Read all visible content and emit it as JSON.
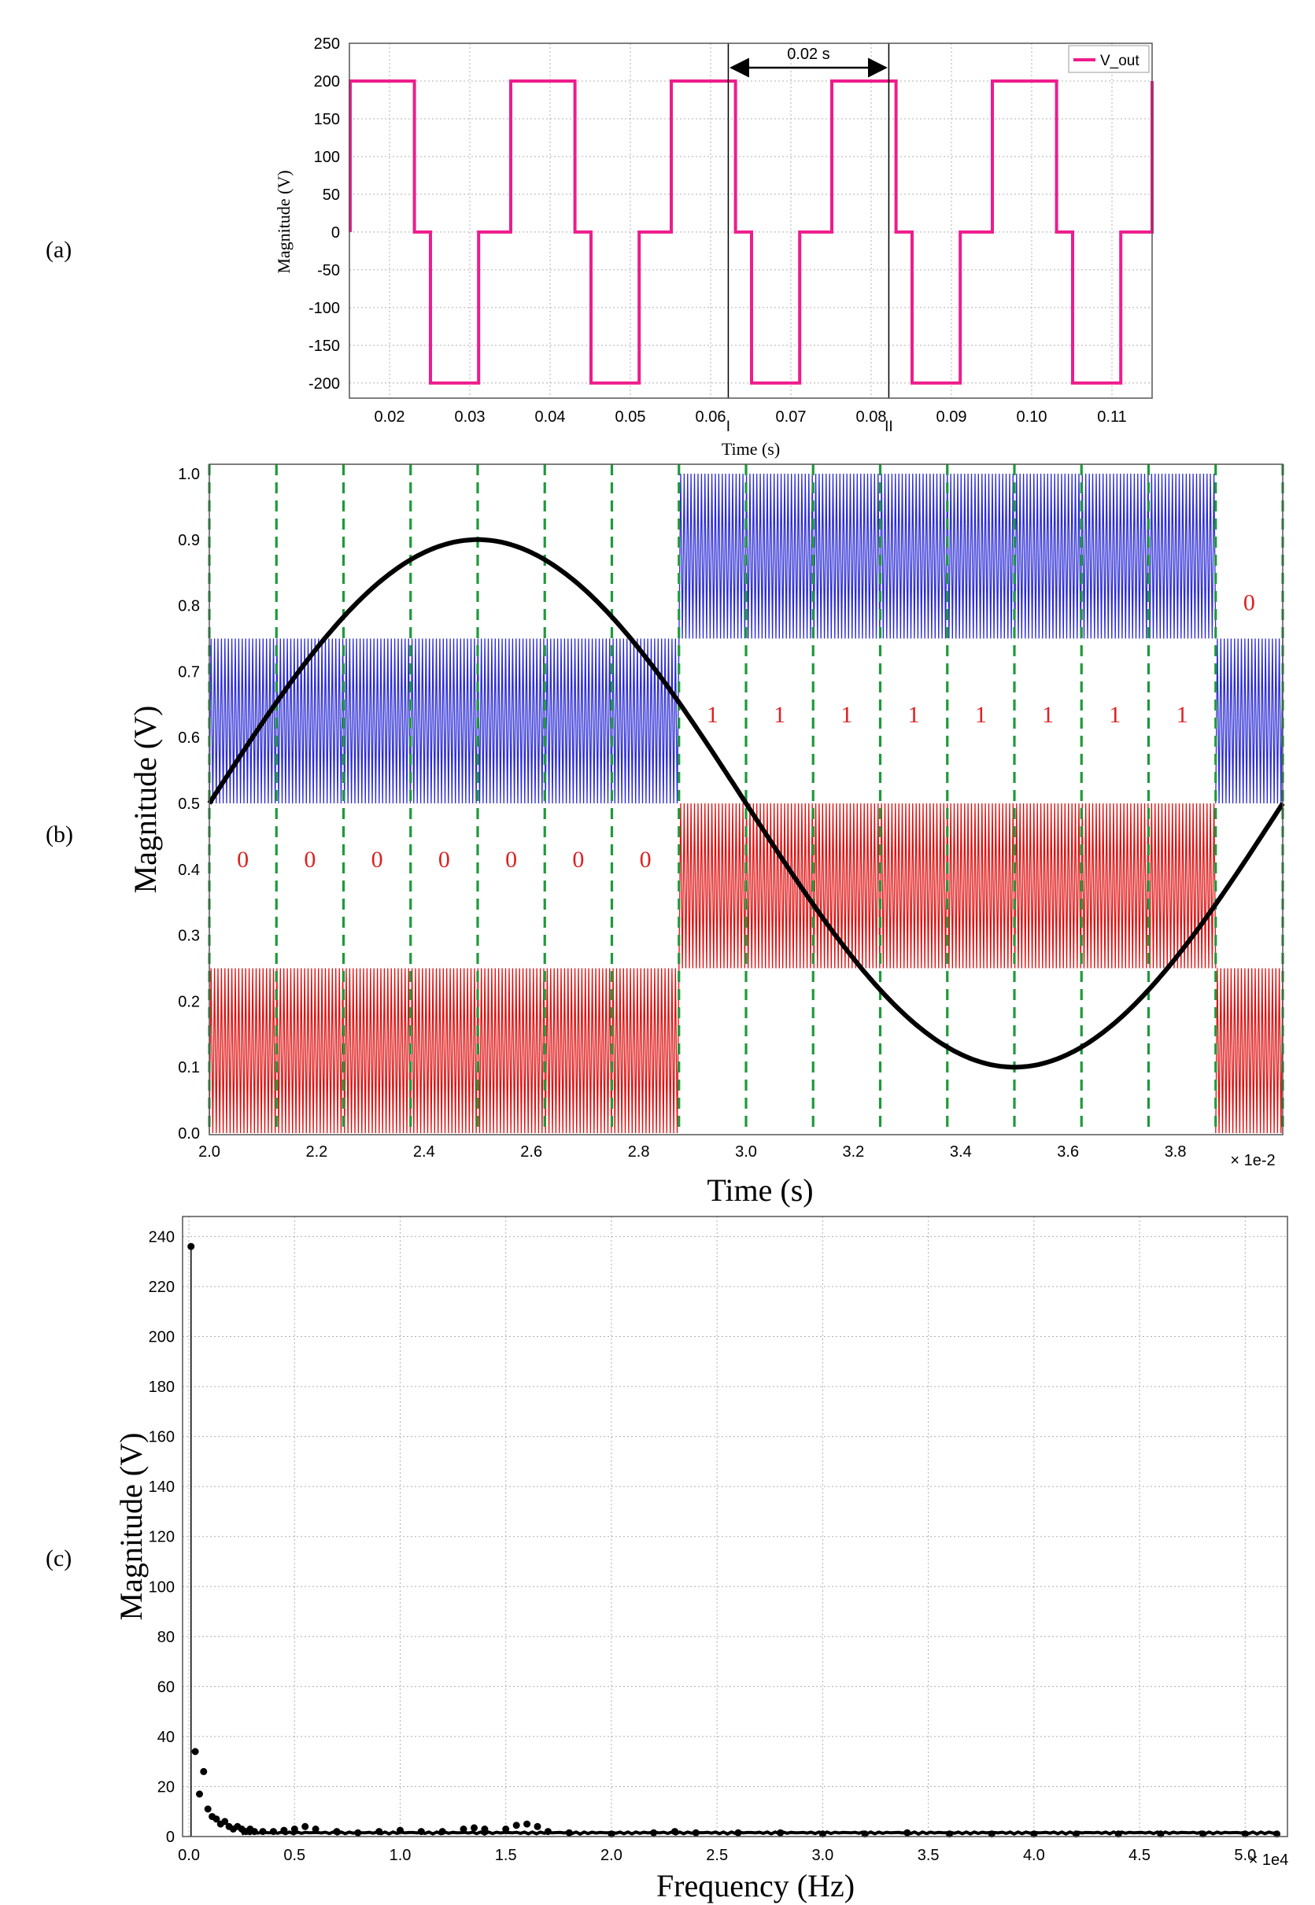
{
  "panel_labels": [
    "(a)",
    "(b)",
    "(c)"
  ],
  "colors": {
    "v_out": "#ee1c8c",
    "carrier_upper": "#2b2bd6",
    "carrier_lower": "#e01010",
    "reference": "#000000",
    "sector_lines": "#1e9a3a",
    "bit_label": "#d22222",
    "spectrum": "#000000",
    "grid": "#b0b0b0"
  },
  "chart_data": [
    {
      "id": "a",
      "type": "line",
      "xlabel": "Time (s)",
      "ylabel": "Magnitude (V)",
      "xlim": [
        0.015,
        0.115
      ],
      "ylim": [
        -220,
        250
      ],
      "xticks": [
        "0.02",
        "0.03",
        "0.04",
        "0.05",
        "0.06",
        "0.07",
        "0.08",
        "0.09",
        "0.10",
        "0.11"
      ],
      "yticks": [
        "250",
        "200",
        "150",
        "100",
        "50",
        "0",
        "-50",
        "-100",
        "-150",
        "-200"
      ],
      "grid": true,
      "legend": {
        "placement": "top-right",
        "entries": [
          "V_out"
        ]
      },
      "series": [
        {
          "name": "V_out",
          "period": 0.02,
          "levels": [
            200,
            0,
            -200,
            0
          ],
          "description": "three-level quasi-square wave"
        }
      ],
      "annotations": [
        {
          "text": "0.02 s",
          "from": 0.0622,
          "to": 0.0822
        },
        {
          "text": "I",
          "x": 0.0622
        },
        {
          "text": "II",
          "x": 0.0822
        }
      ]
    },
    {
      "id": "b",
      "type": "line",
      "xlabel": "Time (s)",
      "ylabel": "Magnitude (V)",
      "xlim": [
        2.0,
        3.93
      ],
      "ylim": [
        0.0,
        1.0
      ],
      "xunit": "× 1e-2",
      "xticks": [
        "2.0",
        "2.2",
        "2.4",
        "2.6",
        "2.8",
        "3.0",
        "3.2",
        "3.4",
        "3.6",
        "3.8"
      ],
      "yticks": [
        "1.0",
        "0.9",
        "0.8",
        "0.7",
        "0.6",
        "0.5",
        "0.4",
        "0.3",
        "0.2",
        "0.1",
        "0.0"
      ],
      "reference": {
        "offset": 0.5,
        "amplitude": 0.4,
        "period": 2.0,
        "start": 2.0
      },
      "carriers": [
        {
          "name": "upper",
          "bands": [
            {
              "x": [
                2.0,
                2.875
              ],
              "y": [
                0.5,
                0.75
              ]
            },
            {
              "x": [
                2.875,
                3.875
              ],
              "y": [
                0.75,
                1.0
              ]
            },
            {
              "x": [
                3.875,
                4.0
              ],
              "y": [
                0.5,
                0.75
              ]
            }
          ]
        },
        {
          "name": "lower",
          "bands": [
            {
              "x": [
                2.0,
                2.875
              ],
              "y": [
                0.0,
                0.25
              ]
            },
            {
              "x": [
                2.875,
                3.875
              ],
              "y": [
                0.25,
                0.5
              ]
            },
            {
              "x": [
                3.875,
                4.0
              ],
              "y": [
                0.0,
                0.25
              ]
            }
          ]
        }
      ],
      "sector_lines": [
        2.0,
        2.125,
        2.25,
        2.375,
        2.5,
        2.625,
        2.75,
        2.875,
        3.0,
        3.125,
        3.25,
        3.375,
        3.5,
        3.625,
        3.75,
        3.875,
        4.0
      ],
      "bit_labels": [
        {
          "text": "0",
          "x": 2.0625,
          "y": 0.415
        },
        {
          "text": "0",
          "x": 2.1875,
          "y": 0.415
        },
        {
          "text": "0",
          "x": 2.3125,
          "y": 0.415
        },
        {
          "text": "0",
          "x": 2.4375,
          "y": 0.415
        },
        {
          "text": "0",
          "x": 2.5625,
          "y": 0.415
        },
        {
          "text": "0",
          "x": 2.6875,
          "y": 0.415
        },
        {
          "text": "0",
          "x": 2.8125,
          "y": 0.415
        },
        {
          "text": "1",
          "x": 2.9375,
          "y": 0.635
        },
        {
          "text": "1",
          "x": 3.0625,
          "y": 0.635
        },
        {
          "text": "1",
          "x": 3.1875,
          "y": 0.635
        },
        {
          "text": "1",
          "x": 3.3125,
          "y": 0.635
        },
        {
          "text": "1",
          "x": 3.4375,
          "y": 0.635
        },
        {
          "text": "1",
          "x": 3.5625,
          "y": 0.635
        },
        {
          "text": "1",
          "x": 3.6875,
          "y": 0.635
        },
        {
          "text": "1",
          "x": 3.8125,
          "y": 0.635
        },
        {
          "text": "0",
          "x": 3.9375,
          "y": 0.805
        }
      ]
    },
    {
      "id": "c",
      "type": "scatter",
      "xlabel": "Frequency (Hz)",
      "ylabel": "Magnitude (V)",
      "xlim": [
        -0.02,
        5.2
      ],
      "ylim": [
        0,
        240
      ],
      "xunit": "× 1e4",
      "xticks": [
        "0.0",
        "0.5",
        "1.0",
        "1.5",
        "2.0",
        "2.5",
        "3.0",
        "3.5",
        "4.0",
        "4.5",
        "5.0"
      ],
      "yticks": [
        "240",
        "220",
        "200",
        "180",
        "160",
        "140",
        "120",
        "100",
        "80",
        "60",
        "40",
        "20",
        "0"
      ],
      "grid": true,
      "points": [
        [
          0.01,
          236
        ],
        [
          0.03,
          34
        ],
        [
          0.05,
          17
        ],
        [
          0.07,
          26
        ],
        [
          0.09,
          11
        ],
        [
          0.11,
          8
        ],
        [
          0.13,
          7
        ],
        [
          0.15,
          5
        ],
        [
          0.17,
          6
        ],
        [
          0.19,
          4
        ],
        [
          0.21,
          3
        ],
        [
          0.23,
          4
        ],
        [
          0.25,
          3
        ],
        [
          0.27,
          2
        ],
        [
          0.29,
          3
        ],
        [
          0.31,
          2
        ],
        [
          0.35,
          2
        ],
        [
          0.4,
          2
        ],
        [
          0.45,
          2.5
        ],
        [
          0.5,
          3
        ],
        [
          0.55,
          4
        ],
        [
          0.6,
          3
        ],
        [
          0.7,
          2
        ],
        [
          0.8,
          1.5
        ],
        [
          0.9,
          2
        ],
        [
          1.0,
          2.5
        ],
        [
          1.1,
          2
        ],
        [
          1.2,
          2
        ],
        [
          1.3,
          3
        ],
        [
          1.35,
          3.5
        ],
        [
          1.4,
          3
        ],
        [
          1.5,
          3
        ],
        [
          1.55,
          4.5
        ],
        [
          1.6,
          5
        ],
        [
          1.65,
          4
        ],
        [
          1.7,
          2
        ],
        [
          1.8,
          1.5
        ],
        [
          2.0,
          1
        ],
        [
          2.2,
          1.5
        ],
        [
          2.3,
          2
        ],
        [
          2.4,
          1.5
        ],
        [
          2.6,
          1.5
        ],
        [
          2.8,
          1.5
        ],
        [
          3.0,
          1
        ],
        [
          3.2,
          1
        ],
        [
          3.4,
          1.5
        ],
        [
          3.6,
          1
        ],
        [
          3.8,
          1
        ],
        [
          4.0,
          1
        ],
        [
          4.2,
          1
        ],
        [
          4.4,
          1
        ],
        [
          4.6,
          1
        ],
        [
          4.8,
          1
        ],
        [
          5.0,
          1
        ],
        [
          5.15,
          1
        ]
      ]
    }
  ]
}
